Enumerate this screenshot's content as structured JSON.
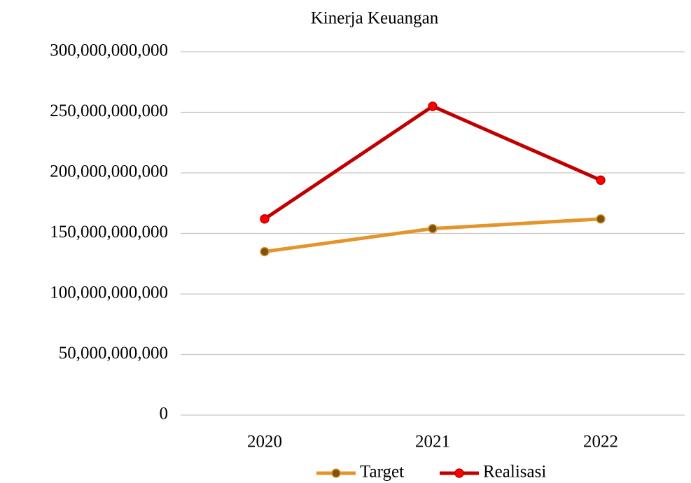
{
  "chart_data": {
    "type": "line",
    "title": "Kinerja Keuangan",
    "categories": [
      "2020",
      "2021",
      "2022"
    ],
    "series": [
      {
        "name": "Target",
        "color": "#e3952c",
        "marker_color": "#7a5512",
        "values": [
          135000000000,
          154000000000,
          162000000000
        ]
      },
      {
        "name": "Realisasi",
        "color": "#c00000",
        "marker_color": "#ff0000",
        "values": [
          162000000000,
          255000000000,
          194000000000
        ]
      }
    ],
    "ylim": [
      0,
      300000000000
    ],
    "yticks": [
      0,
      {
        "value": 50000000000,
        "label": "50,000,000,000"
      },
      {
        "value": 100000000000,
        "label": "100,000,000,000"
      },
      {
        "value": 150000000000,
        "label": "150,000,000,000"
      },
      {
        "value": 200000000000,
        "label": "200,000,000,000"
      },
      {
        "value": 250000000000,
        "label": "250,000,000,000"
      },
      {
        "value": 300000000000,
        "label": "300,000,000,000"
      }
    ],
    "grid": true,
    "legend": "bottom"
  }
}
